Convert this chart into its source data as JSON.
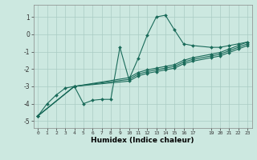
{
  "xlabel": "Humidex (Indice chaleur)",
  "bg_color": "#cce8e0",
  "grid_color": "#aaccc4",
  "line_color": "#1a6b5a",
  "xlim": [
    -0.5,
    23.5
  ],
  "ylim": [
    -5.4,
    1.7
  ],
  "xtick_positions": [
    0,
    1,
    2,
    3,
    4,
    5,
    6,
    7,
    8,
    9,
    10,
    11,
    12,
    13,
    14,
    15,
    16,
    17,
    19,
    20,
    21,
    22,
    23
  ],
  "xtick_labels": [
    "0",
    "1",
    "2",
    "3",
    "4",
    "5",
    "6",
    "7",
    "8",
    "9",
    "10",
    "11",
    "12",
    "13",
    "14",
    "15",
    "16",
    "17",
    "19",
    "20",
    "21",
    "22",
    "23"
  ],
  "yticks": [
    -5,
    -4,
    -3,
    -2,
    -1,
    0,
    1
  ],
  "line1_x": [
    0,
    1,
    2,
    3,
    4,
    5,
    6,
    7,
    8,
    9,
    10,
    11,
    12,
    13,
    14,
    15,
    16,
    17,
    19,
    20,
    21,
    22,
    23
  ],
  "line1_y": [
    -4.7,
    -4.0,
    -3.5,
    -3.1,
    -3.0,
    -4.0,
    -3.8,
    -3.75,
    -3.75,
    -0.75,
    -2.6,
    -1.4,
    -0.05,
    1.0,
    1.1,
    0.25,
    -0.55,
    -0.65,
    -0.75,
    -0.75,
    -0.65,
    -0.55,
    -0.45
  ],
  "line2_x": [
    0,
    4,
    10,
    11,
    12,
    13,
    14,
    15,
    16,
    17,
    19,
    20,
    21,
    22,
    23
  ],
  "line2_y": [
    -4.7,
    -3.0,
    -2.5,
    -2.2,
    -2.05,
    -1.95,
    -1.85,
    -1.75,
    -1.5,
    -1.35,
    -1.15,
    -1.05,
    -0.85,
    -0.65,
    -0.45
  ],
  "line3_x": [
    0,
    4,
    10,
    11,
    12,
    13,
    14,
    15,
    16,
    17,
    19,
    20,
    21,
    22,
    23
  ],
  "line3_y": [
    -4.7,
    -3.0,
    -2.6,
    -2.3,
    -2.15,
    -2.05,
    -1.95,
    -1.85,
    -1.6,
    -1.45,
    -1.25,
    -1.15,
    -0.95,
    -0.75,
    -0.55
  ],
  "line4_x": [
    0,
    4,
    10,
    11,
    12,
    13,
    14,
    15,
    16,
    17,
    19,
    20,
    21,
    22,
    23
  ],
  "line4_y": [
    -4.7,
    -3.0,
    -2.7,
    -2.4,
    -2.25,
    -2.15,
    -2.05,
    -1.95,
    -1.7,
    -1.55,
    -1.35,
    -1.25,
    -1.05,
    -0.85,
    -0.65
  ]
}
